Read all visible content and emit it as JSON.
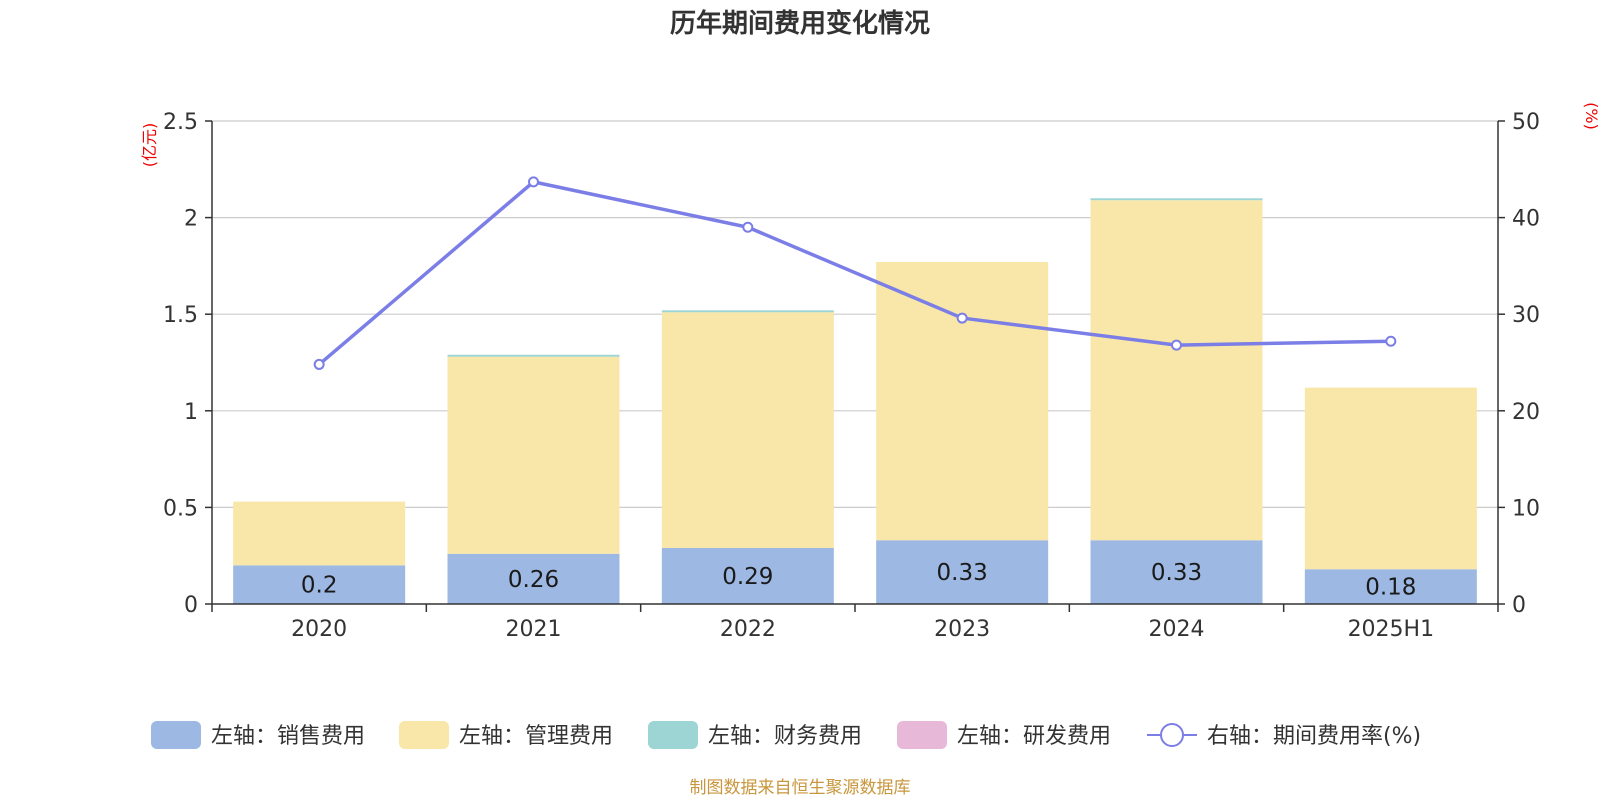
{
  "chart_data": {
    "type": "bar",
    "stacked": true,
    "title": "历年期间费用变化情况",
    "categories": [
      "2020",
      "2021",
      "2022",
      "2023",
      "2024",
      "2025H1"
    ],
    "y_left": {
      "unit": "(亿元)",
      "ylim": [
        0,
        2.5
      ],
      "ticks": [
        "0",
        "0.5",
        "1",
        "1.5",
        "2",
        "2.5"
      ],
      "tick_values": [
        0,
        0.5,
        1,
        1.5,
        2,
        2.5
      ]
    },
    "y_right": {
      "unit": "(%)",
      "ylim": [
        0,
        50
      ],
      "ticks": [
        "0",
        "10",
        "20",
        "30",
        "40",
        "50"
      ],
      "tick_values": [
        0,
        10,
        20,
        30,
        40,
        50
      ]
    },
    "grid": true,
    "legend_position": "bottom",
    "series": [
      {
        "name": "左轴：销售费用",
        "type": "bar",
        "axis": "left",
        "color": "#9db8e2",
        "values": [
          0.2,
          0.26,
          0.29,
          0.33,
          0.33,
          0.18
        ],
        "labels": [
          "0.2",
          "0.26",
          "0.29",
          "0.33",
          "0.33",
          "0.18"
        ]
      },
      {
        "name": "左轴：管理费用",
        "type": "bar",
        "axis": "left",
        "color": "#f8e7a8",
        "values": [
          0.33,
          1.02,
          1.22,
          1.44,
          1.76,
          0.94
        ]
      },
      {
        "name": "左轴：财务费用",
        "type": "bar",
        "axis": "left",
        "color": "#9dd4d4",
        "values": [
          0.0,
          0.01,
          0.01,
          0.0,
          0.01,
          0.0
        ]
      },
      {
        "name": "左轴：研发费用",
        "type": "bar",
        "axis": "left",
        "color": "#e8b8d8",
        "values": [
          0,
          0,
          0,
          0,
          0,
          0
        ]
      },
      {
        "name": "右轴：期间费用率(%)",
        "type": "line",
        "axis": "right",
        "color": "#7b7ee6",
        "values": [
          24.8,
          43.7,
          39.0,
          29.6,
          26.8,
          27.2
        ]
      }
    ],
    "source": "制图数据来自恒生聚源数据库"
  }
}
